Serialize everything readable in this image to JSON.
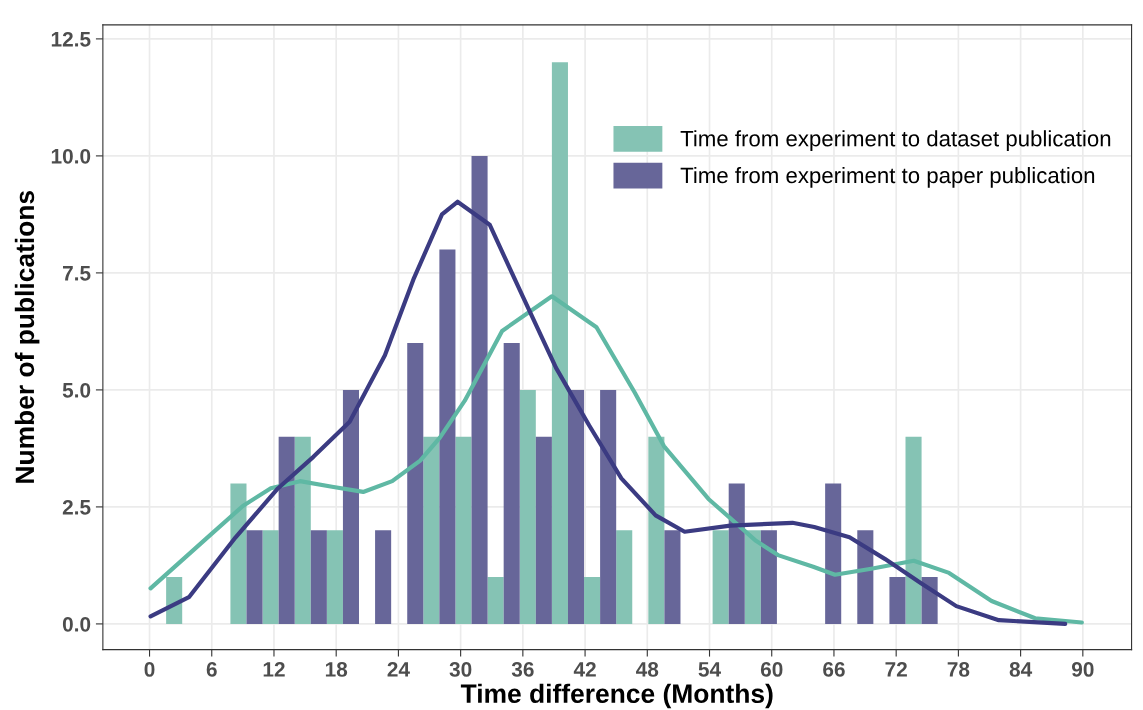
{
  "chart_data": {
    "type": "histogram",
    "xlabel": "Time difference (Months)",
    "ylabel": "Number of publications",
    "bins": [
      1.6,
      4.7,
      7.8,
      10.9,
      14.0,
      17.1,
      20.2,
      23.3,
      26.4,
      29.5,
      32.6,
      35.7,
      38.8,
      41.9,
      45.0,
      48.1,
      51.2,
      54.3,
      57.4,
      60.5,
      63.6,
      66.7,
      69.8,
      72.9,
      76.0
    ],
    "series": [
      {
        "name": "Time from experiment to dataset publication",
        "color": "#85c3b4",
        "values": [
          1,
          0,
          3,
          2,
          4,
          2,
          0,
          0,
          4,
          4,
          1,
          5,
          12,
          1,
          2,
          4,
          0,
          2,
          2,
          0,
          0,
          0,
          0,
          4
        ]
      },
      {
        "name": "Time from experiment to paper publication",
        "color": "#676699",
        "values": [
          0,
          0,
          2,
          4,
          2,
          5,
          2,
          6,
          8,
          10,
          6,
          4,
          5,
          5,
          0,
          2,
          0,
          3,
          2,
          0,
          3,
          2,
          1,
          1
        ]
      },
      {
        "type": "line",
        "color": "#5fb8a4",
        "x": [
          0.1,
          5.6,
          9.0,
          11.7,
          14.5,
          17.6,
          20.6,
          23.4,
          26.1,
          28.0,
          30.4,
          34.0,
          38.8,
          43.1,
          46.8,
          49.6,
          53.9,
          58.4,
          60.6,
          64.0,
          66.1,
          69.6,
          73.7,
          77.1,
          81.2,
          85.4,
          89.9
        ],
        "values": [
          0.76,
          1.85,
          2.52,
          2.9,
          3.05,
          2.93,
          2.82,
          3.05,
          3.49,
          3.98,
          4.77,
          6.26,
          7.0,
          6.34,
          4.94,
          3.8,
          2.67,
          1.79,
          1.47,
          1.22,
          1.05,
          1.18,
          1.35,
          1.09,
          0.49,
          0.12,
          0.03
        ]
      },
      {
        "type": "line",
        "color": "#3b3b82",
        "x": [
          0.1,
          3.8,
          8.3,
          12.4,
          15.8,
          19.3,
          22.7,
          25.5,
          28.2,
          29.7,
          32.8,
          35.9,
          39.2,
          42.4,
          45.5,
          48.8,
          51.6,
          56.0,
          62.0,
          64.1,
          67.5,
          70.9,
          74.4,
          77.8,
          81.9,
          88.3
        ],
        "values": [
          0.16,
          0.57,
          1.85,
          2.9,
          3.57,
          4.32,
          5.74,
          7.39,
          8.75,
          9.02,
          8.53,
          7.04,
          5.47,
          4.24,
          3.11,
          2.32,
          1.97,
          2.1,
          2.16,
          2.07,
          1.85,
          1.39,
          0.87,
          0.38,
          0.08,
          0.0
        ]
      }
    ],
    "xlim": [
      -4.5,
      94.7
    ],
    "ylim": [
      -0.55,
      12.8
    ],
    "xticks": [
      0,
      6,
      12,
      18,
      24,
      30,
      36,
      42,
      48,
      54,
      60,
      66,
      72,
      78,
      84,
      90
    ],
    "yticks": [
      {
        "value": 0,
        "label": "0.0"
      },
      {
        "value": 2.5,
        "label": "2.5"
      },
      {
        "value": 5,
        "label": "5.0"
      },
      {
        "value": 7.5,
        "label": "7.5"
      },
      {
        "value": 10,
        "label": "10.0"
      },
      {
        "value": 12.5,
        "label": "12.5"
      }
    ],
    "grid": true,
    "legend": "top right"
  }
}
